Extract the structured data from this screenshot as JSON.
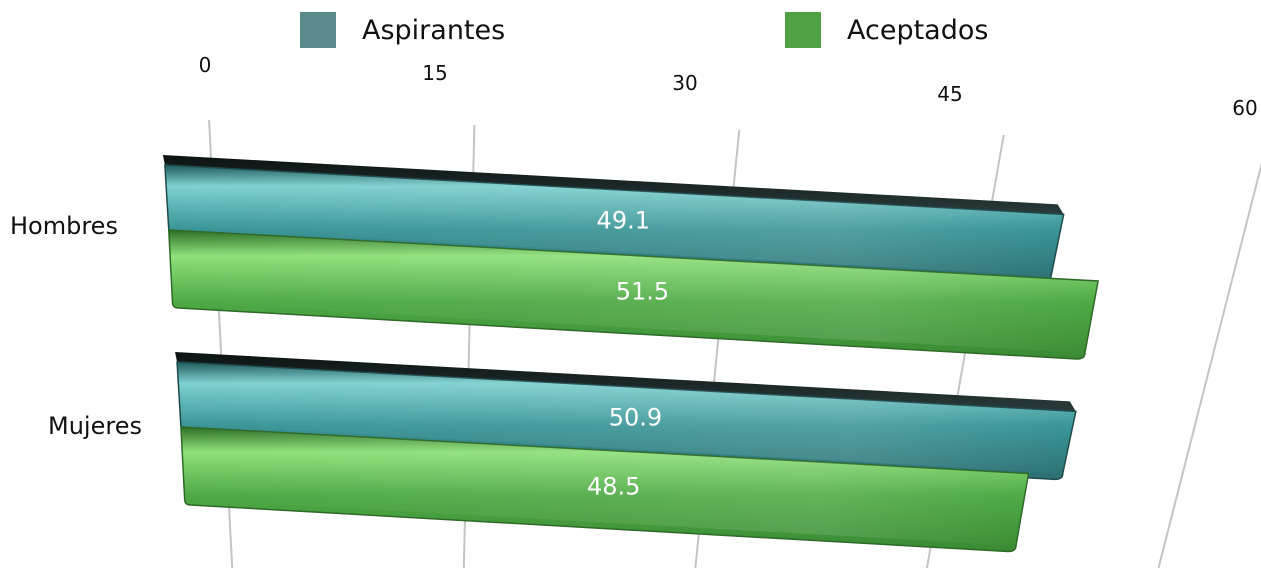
{
  "chart_data": {
    "type": "bar",
    "orientation": "horizontal",
    "categories": [
      "Hombres",
      "Mujeres"
    ],
    "series": [
      {
        "name": "Aspirantes",
        "values": [
          49.1,
          50.9
        ],
        "color": "#3a8f92"
      },
      {
        "name": "Aceptados",
        "values": [
          51.5,
          48.5
        ],
        "color": "#4ea244"
      }
    ],
    "x_ticks": [
      "0",
      "15",
      "30",
      "45",
      "60"
    ],
    "xlim": [
      0,
      60
    ],
    "grid": true,
    "legend_position": "top",
    "style": "3d-perspective"
  }
}
